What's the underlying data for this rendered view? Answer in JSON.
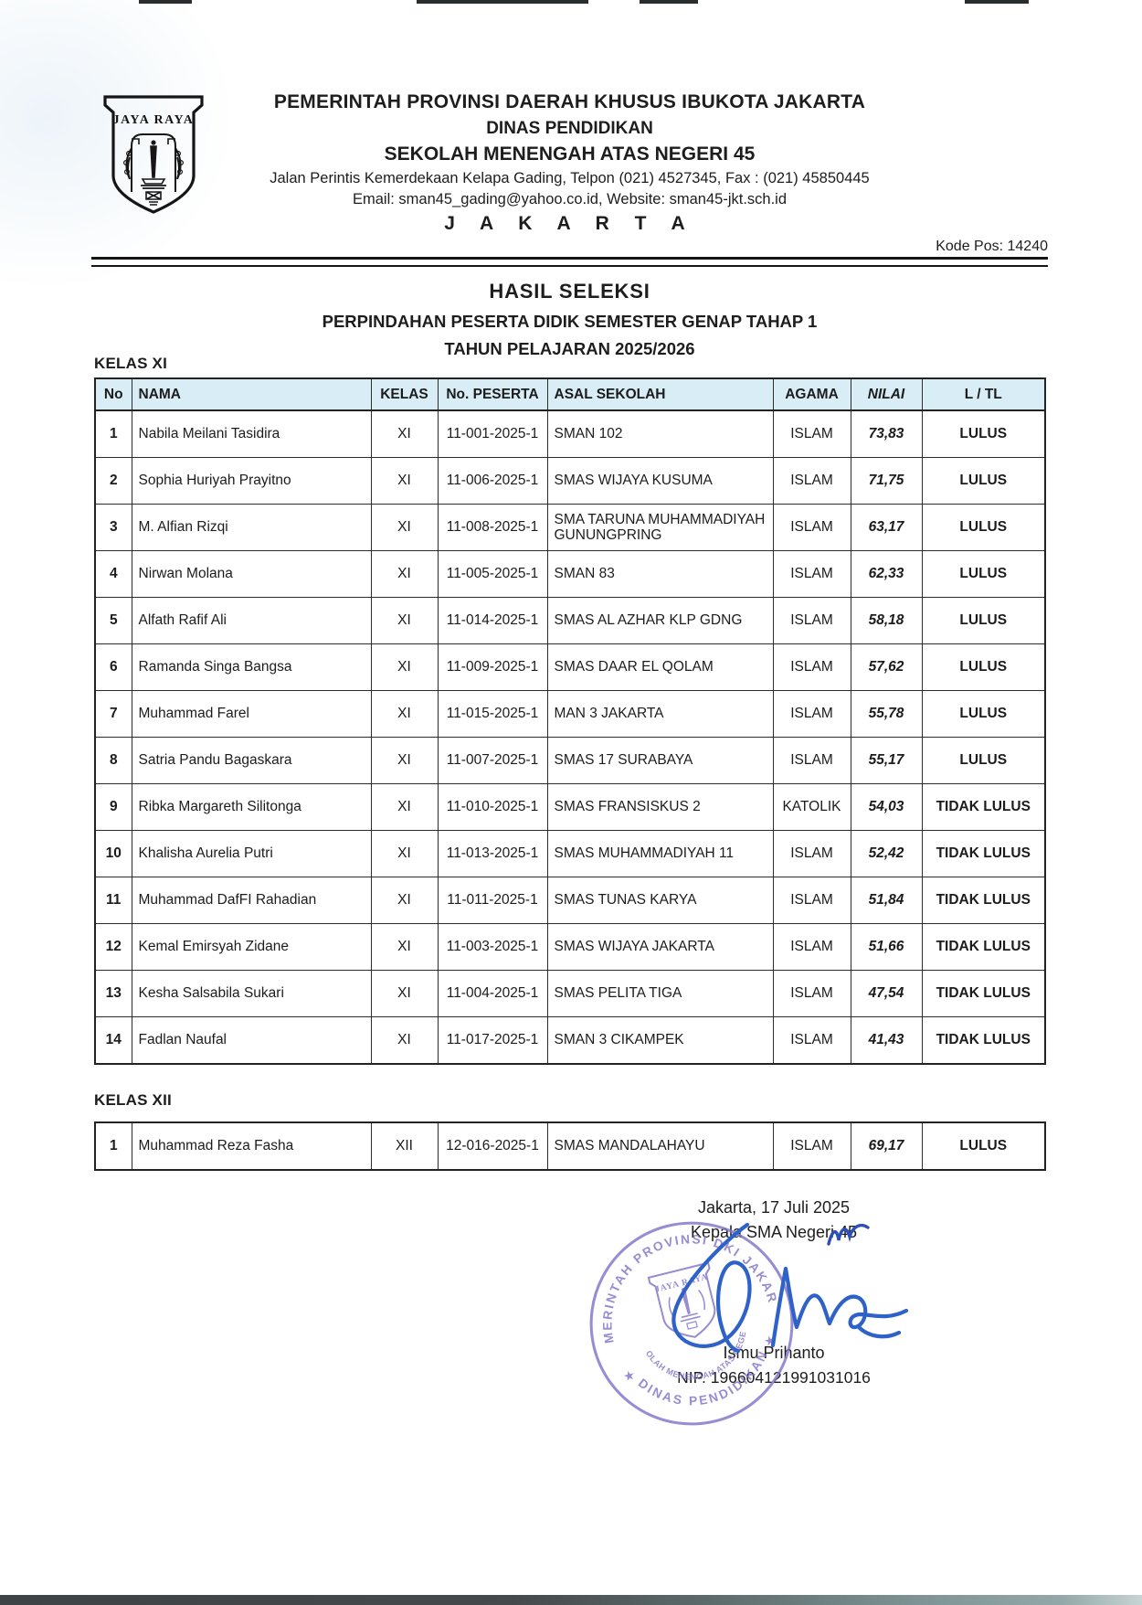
{
  "letterhead": {
    "logo_text": "JAYA RAYA",
    "line1": "PEMERINTAH PROVINSI DAERAH KHUSUS IBUKOTA JAKARTA",
    "line2": "DINAS PENDIDIKAN",
    "line3": "SEKOLAH MENENGAH ATAS NEGERI 45",
    "address": "Jalan Perintis Kemerdekaan Kelapa Gading, Telpon (021) 4527345, Fax : (021) 45850445",
    "contact": "Email: sman45_gading@yahoo.co.id, Website: sman45-jkt.sch.id",
    "city": "J A K A R T A",
    "postal_code": "Kode Pos: 14240"
  },
  "title": {
    "heading": "HASIL SELEKSI",
    "subtitle1": "PERPINDAHAN PESERTA DIDIK SEMESTER GENAP TAHAP 1",
    "subtitle2": "TAHUN PELAJARAN 2025/2026"
  },
  "sections": {
    "xi_label": "KELAS XI",
    "xii_label": "KELAS XII"
  },
  "table": {
    "headers": [
      "No",
      "NAMA",
      "KELAS",
      "No. PESERTA",
      "ASAL SEKOLAH",
      "AGAMA",
      "NILAI",
      "L / TL"
    ],
    "rows_xi": [
      [
        "1",
        "Nabila Meilani Tasidira",
        "XI",
        "11-001-2025-1",
        "SMAN 102",
        "ISLAM",
        "73,83",
        "LULUS"
      ],
      [
        "2",
        "Sophia Huriyah Prayitno",
        "XI",
        "11-006-2025-1",
        "SMAS WIJAYA KUSUMA",
        "ISLAM",
        "71,75",
        "LULUS"
      ],
      [
        "3",
        "M. Alfian Rizqi",
        "XI",
        "11-008-2025-1",
        "SMA TARUNA MUHAMMADIYAH GUNUNGPRING",
        "ISLAM",
        "63,17",
        "LULUS"
      ],
      [
        "4",
        "Nirwan Molana",
        "XI",
        "11-005-2025-1",
        "SMAN 83",
        "ISLAM",
        "62,33",
        "LULUS"
      ],
      [
        "5",
        "Alfath Rafif Ali",
        "XI",
        "11-014-2025-1",
        "SMAS AL AZHAR KLP GDNG",
        "ISLAM",
        "58,18",
        "LULUS"
      ],
      [
        "6",
        "Ramanda Singa Bangsa",
        "XI",
        "11-009-2025-1",
        "SMAS DAAR EL QOLAM",
        "ISLAM",
        "57,62",
        "LULUS"
      ],
      [
        "7",
        "Muhammad Farel",
        "XI",
        "11-015-2025-1",
        "MAN 3 JAKARTA",
        "ISLAM",
        "55,78",
        "LULUS"
      ],
      [
        "8",
        "Satria Pandu Bagaskara",
        "XI",
        "11-007-2025-1",
        "SMAS 17 SURABAYA",
        "ISLAM",
        "55,17",
        "LULUS"
      ],
      [
        "9",
        "Ribka Margareth Silitonga",
        "XI",
        "11-010-2025-1",
        "SMAS FRANSISKUS 2",
        "KATOLIK",
        "54,03",
        "TIDAK LULUS"
      ],
      [
        "10",
        "Khalisha Aurelia Putri",
        "XI",
        "11-013-2025-1",
        "SMAS MUHAMMADIYAH 11",
        "ISLAM",
        "52,42",
        "TIDAK LULUS"
      ],
      [
        "11",
        "Muhammad DafFI Rahadian",
        "XI",
        "11-011-2025-1",
        "SMAS TUNAS KARYA",
        "ISLAM",
        "51,84",
        "TIDAK LULUS"
      ],
      [
        "12",
        "Kemal Emirsyah Zidane",
        "XI",
        "11-003-2025-1",
        "SMAS WIJAYA JAKARTA",
        "ISLAM",
        "51,66",
        "TIDAK LULUS"
      ],
      [
        "13",
        "Kesha Salsabila Sukari",
        "XI",
        "11-004-2025-1",
        "SMAS PELITA TIGA",
        "ISLAM",
        "47,54",
        "TIDAK LULUS"
      ],
      [
        "14",
        "Fadlan Naufal",
        "XI",
        "11-017-2025-1",
        "SMAN 3 CIKAMPEK",
        "ISLAM",
        "41,43",
        "TIDAK LULUS"
      ]
    ],
    "rows_xii": [
      [
        "1",
        "Muhammad Reza Fasha",
        "XII",
        "12-016-2025-1",
        "SMAS MANDALAHAYU",
        "ISLAM",
        "69,17",
        "LULUS"
      ]
    ]
  },
  "signature": {
    "place_date": "Jakarta, 17 Juli 2025",
    "role": "Kepala SMA Negeri 45",
    "name": "Ismu Prihanto",
    "nip": "NIP. 196604121991031016",
    "stamp_outer_top": "PEMERINTAH PROVINSI DKI JAKARTA",
    "stamp_outer_bottom": "DINAS PENDIDIKAN",
    "stamp_inner": "SEKOLAH MENENGAH ATAS NEGERI 45",
    "stamp_shield": "JAYA RAYA"
  },
  "colors": {
    "table_header_bg": "#d9edf6",
    "stamp_purple": "#8274c9",
    "signature_blue": "#2f62c8",
    "border_dark": "#222222"
  }
}
